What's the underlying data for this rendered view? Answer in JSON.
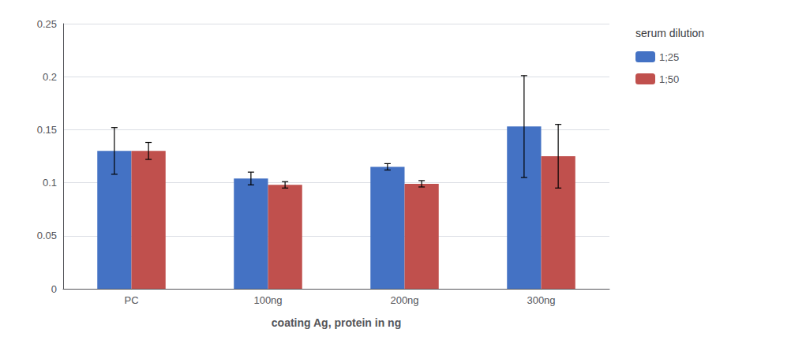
{
  "chart_data": {
    "type": "bar",
    "categories": [
      "PC",
      "100ng",
      "200ng",
      "300ng"
    ],
    "series": [
      {
        "name": "1;25",
        "color": "#4472C4",
        "values": [
          0.13,
          0.104,
          0.115,
          0.153
        ],
        "errors": [
          0.022,
          0.006,
          0.003,
          0.048
        ]
      },
      {
        "name": "1;50",
        "color": "#C0504D",
        "values": [
          0.13,
          0.098,
          0.099,
          0.125
        ],
        "errors": [
          0.008,
          0.003,
          0.003,
          0.03
        ]
      }
    ],
    "xlabel": "coating Ag, protein in ng",
    "legend_title": "serum dilution",
    "legend": "right",
    "ylim": [
      0,
      0.25
    ],
    "yticks": [
      0,
      0.05,
      0.1,
      0.15,
      0.2,
      0.25
    ],
    "grid": true
  }
}
